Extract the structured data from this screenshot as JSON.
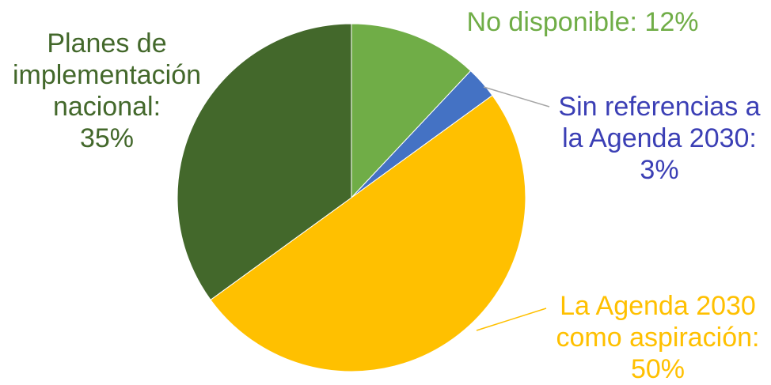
{
  "chart_data": {
    "type": "pie",
    "slices": [
      {
        "label": "No disponible",
        "value": 12,
        "color": "#70ad47",
        "text_color": "#70ad47",
        "label_lines": [
          "No disponible: 12%"
        ]
      },
      {
        "label": "Sin referencias a la Agenda 2030",
        "value": 3,
        "color": "#4472c4",
        "text_color": "#3b3fb5",
        "label_lines": [
          "Sin referencias a",
          "la Agenda 2030:",
          "3%"
        ]
      },
      {
        "label": "La Agenda 2030 como aspiración",
        "value": 50,
        "color": "#ffc000",
        "text_color": "#ffc000",
        "label_lines": [
          "La Agenda 2030",
          "como aspiración:",
          "50%"
        ]
      },
      {
        "label": "Planes de implementación nacional",
        "value": 35,
        "color": "#43682b",
        "text_color": "#43682b",
        "label_lines": [
          "Planes de",
          "implementación",
          "nacional:",
          "35%"
        ]
      }
    ]
  }
}
